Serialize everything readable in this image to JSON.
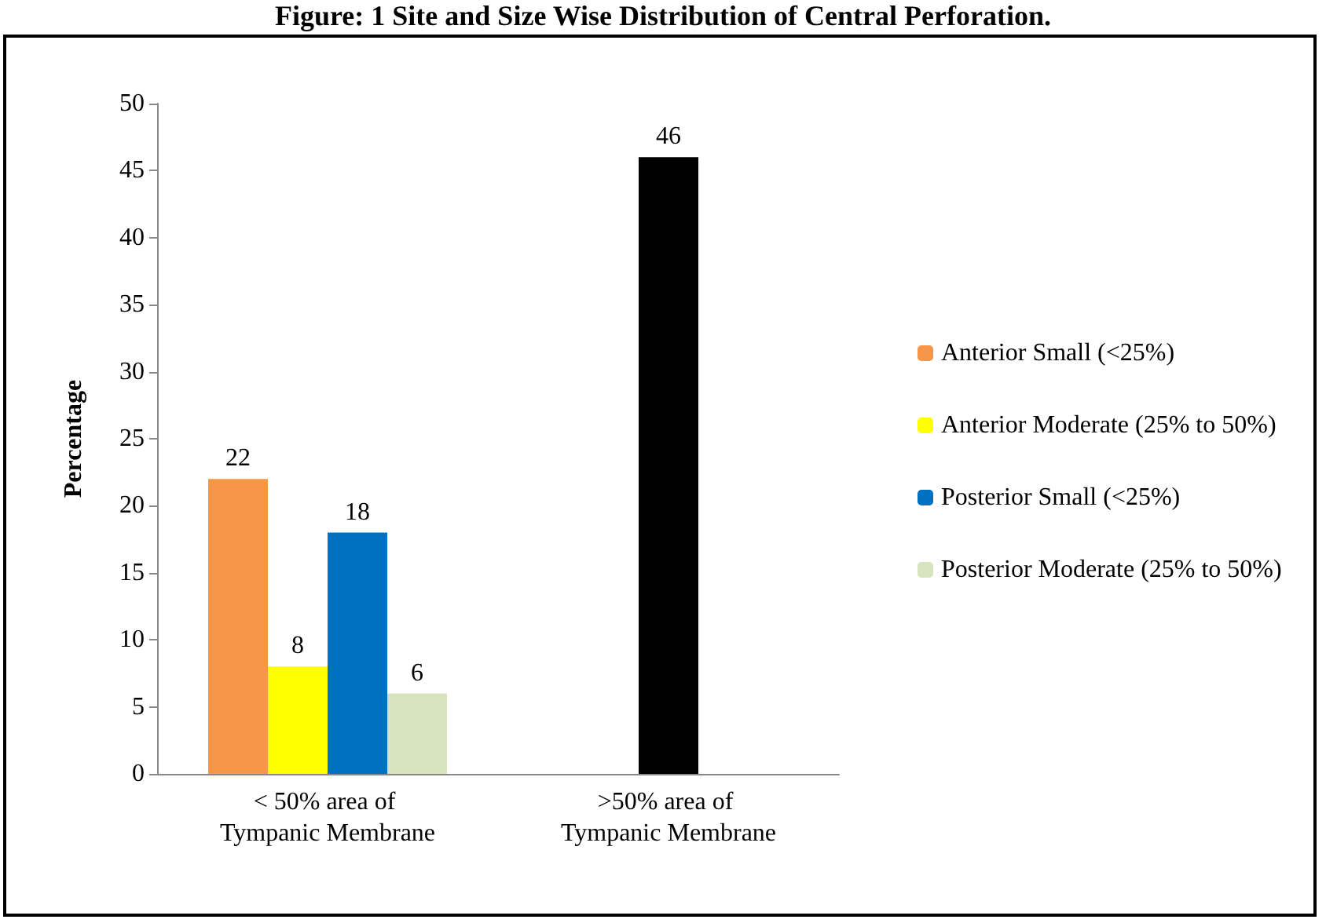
{
  "chart_data": {
    "type": "bar",
    "title": "Figure: 1 Site and Size Wise Distribution of Central Perforation.",
    "ylabel": "Percentage",
    "categories": [
      "< 50% area of Tympanic Membrane",
      ">50% area of Tympanic Membrane"
    ],
    "series": [
      {
        "name": "Anterior Small (<25%)",
        "color": "#f79646",
        "values": [
          22,
          null
        ]
      },
      {
        "name": "Anterior Moderate (25% to 50%)",
        "color": "#ffff00",
        "values": [
          8,
          null
        ]
      },
      {
        "name": "Posterior Small (<25%)",
        "color": "#0070c0",
        "values": [
          18,
          null
        ]
      },
      {
        "name": "Posterior Moderate (25% to 50%)",
        "color": "#d7e4bd",
        "values": [
          6,
          null
        ]
      },
      {
        "color": "#000000",
        "values": [
          null,
          46
        ]
      }
    ],
    "ylim": [
      0,
      50
    ],
    "yticks": [
      0,
      5,
      10,
      15,
      20,
      25,
      30,
      35,
      40,
      45,
      50
    ],
    "grid": false,
    "legend": "right",
    "data_labels": true
  }
}
